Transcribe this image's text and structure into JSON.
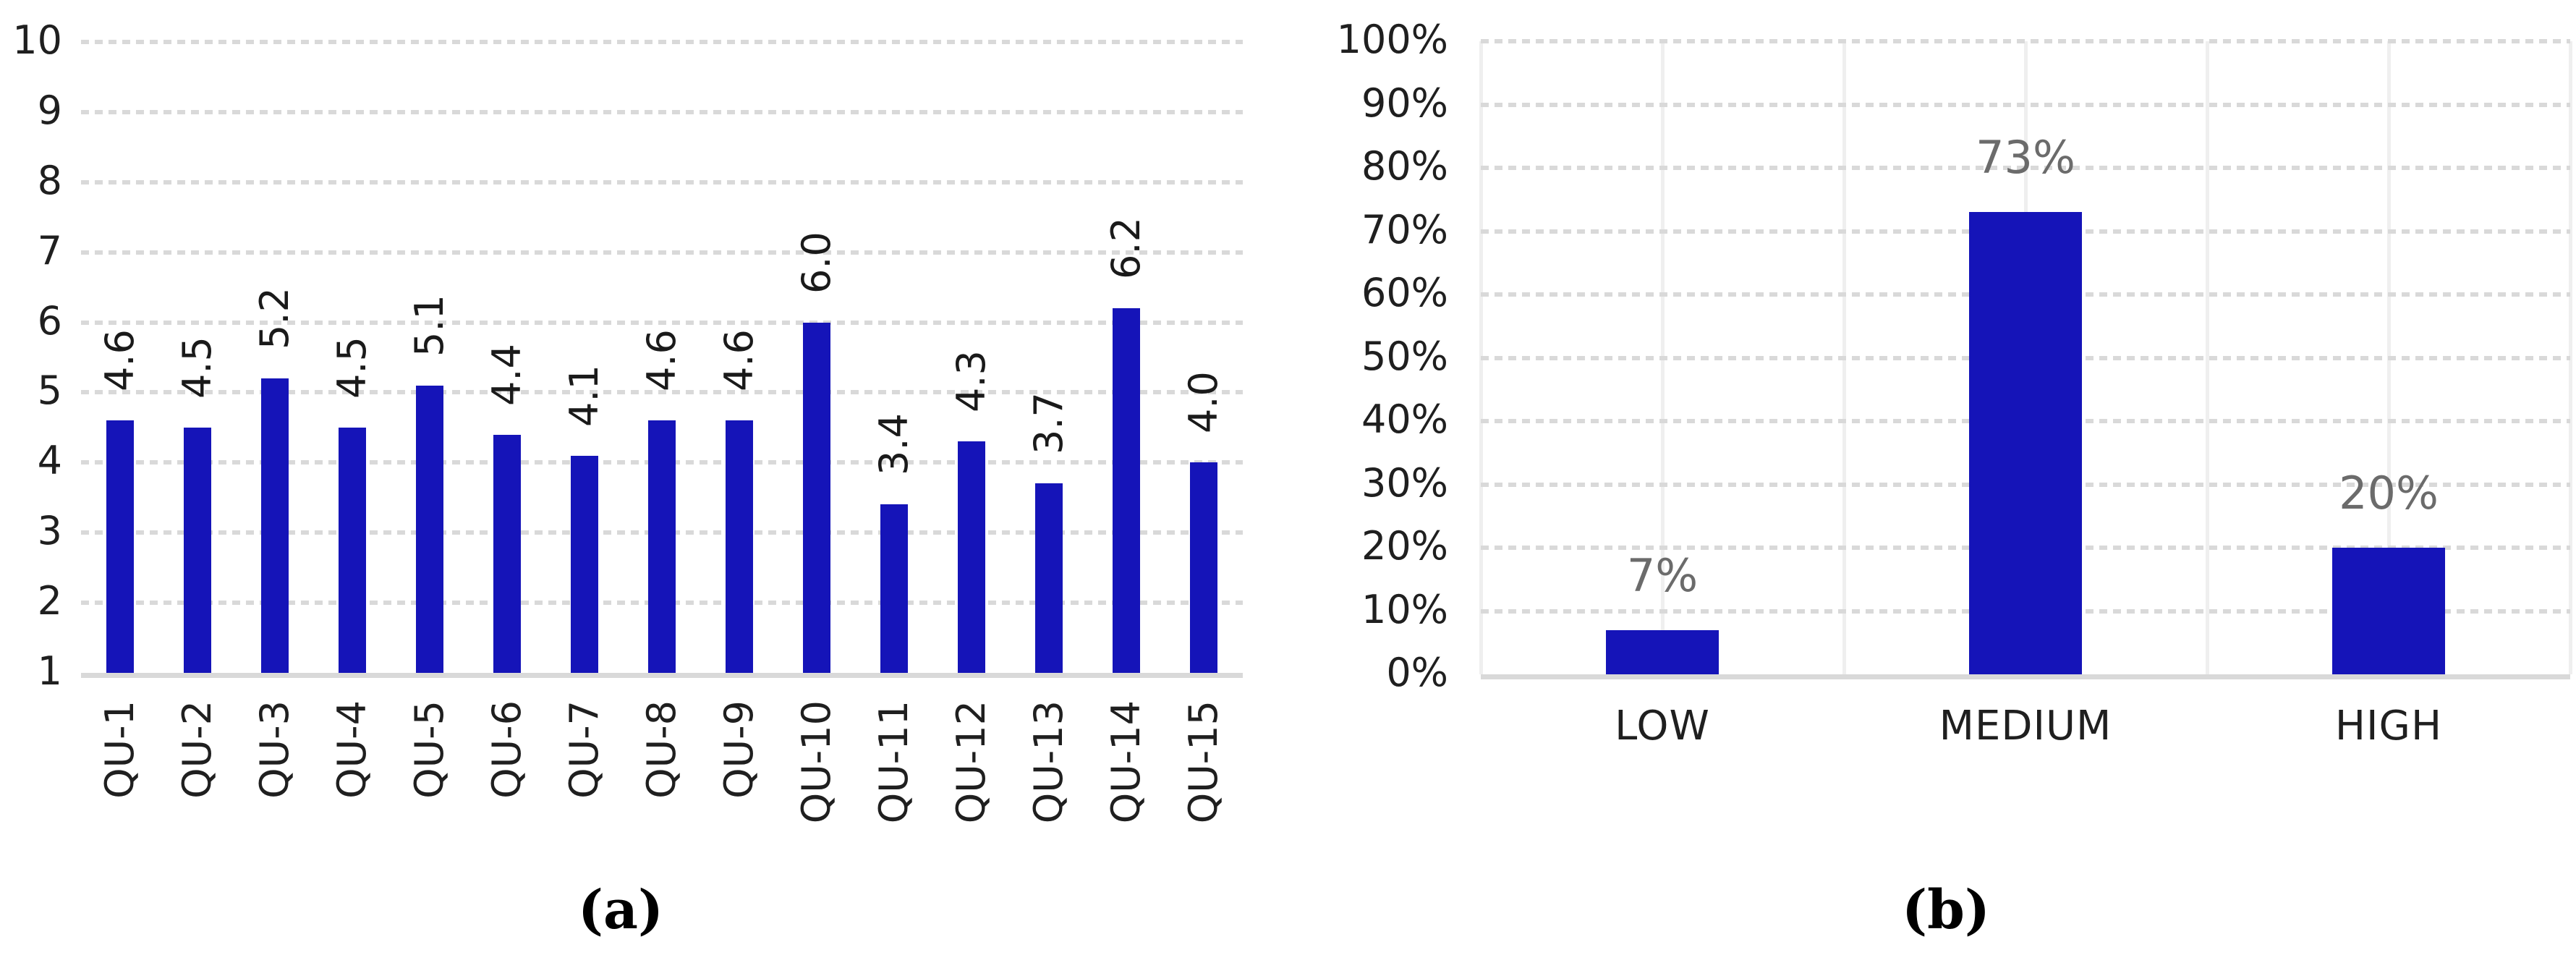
{
  "figure": {
    "background": "#ffffff",
    "panels": [
      {
        "caption": "(a)"
      },
      {
        "caption": "(b)"
      }
    ]
  },
  "colors": {
    "bar": "#1514b8",
    "dotted_grid": "#d9d9d9",
    "vertical_grid": "#efefef",
    "axis_baseline": "#d9d9d9",
    "tick_label": "#1f1f1f",
    "data_label_a": "#1a1a1a",
    "data_label_b": "#6b6b6b"
  },
  "chart_data": [
    {
      "type": "bar",
      "title": "",
      "xlabel": "",
      "ylabel": "",
      "categories": [
        "QU-1",
        "QU-2",
        "QU-3",
        "QU-4",
        "QU-5",
        "QU-6",
        "QU-7",
        "QU-8",
        "QU-9",
        "QU-10",
        "QU-11",
        "QU-12",
        "QU-13",
        "QU-14",
        "QU-15"
      ],
      "values": [
        4.6,
        4.5,
        5.2,
        4.5,
        5.1,
        4.4,
        4.1,
        4.6,
        4.6,
        6.0,
        3.4,
        4.3,
        3.7,
        6.2,
        4.0
      ],
      "data_labels": [
        "4.6",
        "4.5",
        "5.2",
        "4.5",
        "5.1",
        "4.4",
        "4.1",
        "4.6",
        "4.6",
        "6.0",
        "3.4",
        "4.3",
        "3.7",
        "6.2",
        "4.0"
      ],
      "ylim": [
        1,
        10
      ],
      "yticks": [
        1,
        2,
        3,
        4,
        5,
        6,
        7,
        8,
        9,
        10
      ],
      "ytick_labels": [
        "1",
        "2",
        "3",
        "4",
        "5",
        "6",
        "7",
        "8",
        "9",
        "10"
      ],
      "grid": "horizontal-dotted",
      "legend": "none",
      "label_rotation_deg": 90
    },
    {
      "type": "bar",
      "title": "",
      "xlabel": "",
      "ylabel": "",
      "categories": [
        "LOW",
        "MEDIUM",
        "HIGH"
      ],
      "values": [
        7,
        73,
        20
      ],
      "data_labels": [
        "7%",
        "73%",
        "20%"
      ],
      "ylim": [
        0,
        100
      ],
      "yticks": [
        0,
        10,
        20,
        30,
        40,
        50,
        60,
        70,
        80,
        90,
        100
      ],
      "ytick_labels": [
        "0%",
        "10%",
        "20%",
        "30%",
        "40%",
        "50%",
        "60%",
        "70%",
        "80%",
        "90%",
        "100%"
      ],
      "grid": "horizontal-dotted-plus-vertical-solid",
      "legend": "none",
      "label_rotation_deg": 0
    }
  ]
}
